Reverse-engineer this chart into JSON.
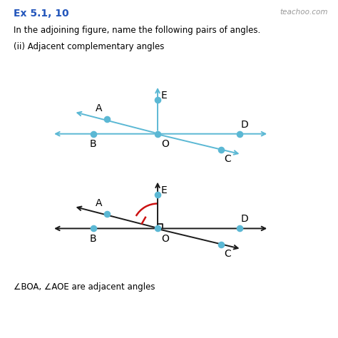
{
  "title": "Ex 5.1, 10",
  "subtitle": "In the adjoining figure, name the following pairs of angles.",
  "part": "(ii) Adjacent complementary angles",
  "watermark": "teachoo.com",
  "answer": "∠BOA, ∠AOE are adjacent angles",
  "bg_color": "#ffffff",
  "line_color": "#5bb8d4",
  "line_color2": "#1a1a1a",
  "dot_color": "#5bb8d4",
  "arc_color": "#cc1111",
  "right_angle_color": "#1a1a1a",
  "ang_A": 150,
  "ang_C": -30,
  "dot_s": 35,
  "fs_label": 10
}
